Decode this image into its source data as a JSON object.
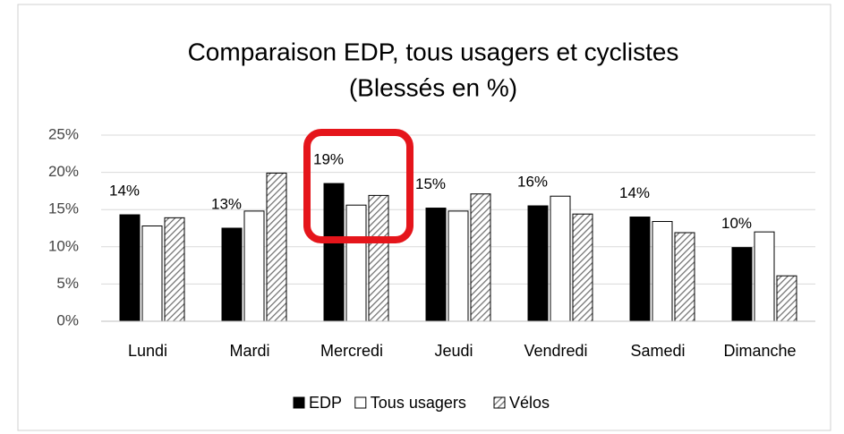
{
  "chart_data": {
    "type": "bar",
    "title": "Comparaison EDP, tous usagers et cyclistes",
    "subtitle": "(Blessés en %)",
    "categories": [
      "Lundi",
      "Mardi",
      "Mercredi",
      "Jeudi",
      "Vendredi",
      "Samedi",
      "Dimanche"
    ],
    "series": [
      {
        "name": "EDP",
        "color": "#000000",
        "values": [
          14.3,
          12.5,
          18.5,
          15.2,
          15.5,
          14.0,
          9.9
        ],
        "value_labels": [
          "14%",
          "13%",
          "19%",
          "15%",
          "16%",
          "14%",
          "10%"
        ]
      },
      {
        "name": "Tous usagers",
        "color": "#ffffff",
        "values": [
          12.8,
          14.8,
          15.6,
          14.8,
          16.8,
          13.4,
          12.0
        ]
      },
      {
        "name": "Vélos",
        "color": "#707070",
        "pattern": "diagonal-hatch",
        "values": [
          13.9,
          19.9,
          16.9,
          17.1,
          14.4,
          11.9,
          6.1
        ]
      }
    ],
    "ylim": [
      0,
      25
    ],
    "yticks": [
      {
        "value": 0,
        "label": "0%"
      },
      {
        "value": 5,
        "label": "5%"
      },
      {
        "value": 10,
        "label": "10%"
      },
      {
        "value": 15,
        "label": "15%"
      },
      {
        "value": 20,
        "label": "20%"
      },
      {
        "value": 25,
        "label": "25%"
      }
    ],
    "grid": true,
    "legend": "bottom"
  }
}
